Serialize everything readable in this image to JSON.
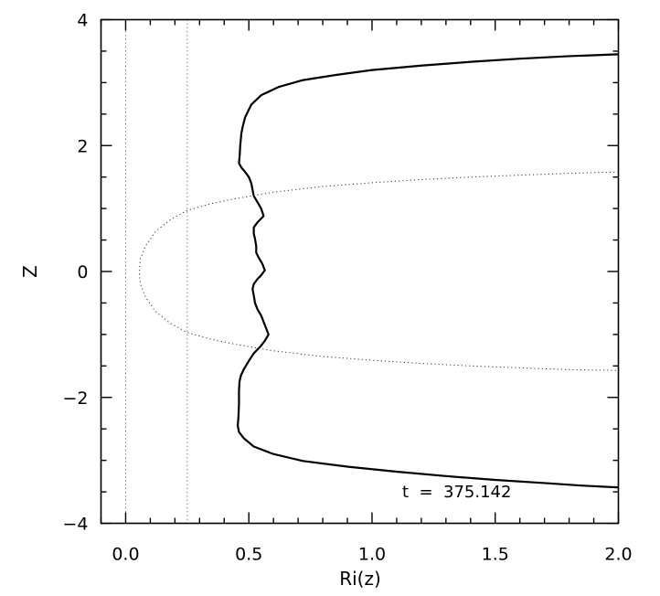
{
  "chart_data": {
    "type": "line",
    "xlabel": "Ri(z)",
    "ylabel": "Z",
    "xlim": [
      -0.1,
      2.0
    ],
    "ylim": [
      -4,
      4
    ],
    "x_ticks": [
      {
        "value": 0.0,
        "label": "0.0"
      },
      {
        "value": 0.5,
        "label": "0.5"
      },
      {
        "value": 1.0,
        "label": "1.0"
      },
      {
        "value": 1.5,
        "label": "1.5"
      },
      {
        "value": 2.0,
        "label": "2.0"
      }
    ],
    "y_ticks": [
      {
        "value": 4,
        "label": "4"
      },
      {
        "value": 2,
        "label": "2"
      },
      {
        "value": 0,
        "label": "0"
      },
      {
        "value": -2,
        "label": "−2"
      },
      {
        "value": -4,
        "label": "−4"
      }
    ],
    "x_minor_step": 0.1,
    "y_minor_step": 0.5,
    "vlines": [
      {
        "x": 0.0,
        "style": "dotted"
      },
      {
        "x": 0.25,
        "style": "dotted"
      }
    ],
    "annotation": "t  =  375.142",
    "series": [
      {
        "style": "solid",
        "points": [
          [
            2.0,
            3.45
          ],
          [
            1.8,
            3.42
          ],
          [
            1.6,
            3.38
          ],
          [
            1.4,
            3.33
          ],
          [
            1.2,
            3.27
          ],
          [
            1.0,
            3.2
          ],
          [
            0.85,
            3.12
          ],
          [
            0.72,
            3.04
          ],
          [
            0.62,
            2.93
          ],
          [
            0.55,
            2.8
          ],
          [
            0.51,
            2.65
          ],
          [
            0.485,
            2.45
          ],
          [
            0.475,
            2.3
          ],
          [
            0.47,
            2.2
          ],
          [
            0.465,
            2.0
          ],
          [
            0.463,
            1.85
          ],
          [
            0.46,
            1.72
          ],
          [
            0.47,
            1.65
          ],
          [
            0.485,
            1.58
          ],
          [
            0.5,
            1.5
          ],
          [
            0.51,
            1.4
          ],
          [
            0.515,
            1.3
          ],
          [
            0.52,
            1.2
          ],
          [
            0.535,
            1.1
          ],
          [
            0.55,
            1.0
          ],
          [
            0.56,
            0.88
          ],
          [
            0.535,
            0.78
          ],
          [
            0.52,
            0.7
          ],
          [
            0.52,
            0.6
          ],
          [
            0.525,
            0.52
          ],
          [
            0.53,
            0.4
          ],
          [
            0.53,
            0.3
          ],
          [
            0.54,
            0.22
          ],
          [
            0.555,
            0.12
          ],
          [
            0.565,
            0.02
          ],
          [
            0.55,
            -0.06
          ],
          [
            0.535,
            -0.12
          ],
          [
            0.52,
            -0.2
          ],
          [
            0.515,
            -0.28
          ],
          [
            0.52,
            -0.38
          ],
          [
            0.525,
            -0.5
          ],
          [
            0.535,
            -0.6
          ],
          [
            0.55,
            -0.7
          ],
          [
            0.56,
            -0.8
          ],
          [
            0.57,
            -0.9
          ],
          [
            0.58,
            -1.0
          ],
          [
            0.565,
            -1.1
          ],
          [
            0.545,
            -1.2
          ],
          [
            0.52,
            -1.3
          ],
          [
            0.5,
            -1.42
          ],
          [
            0.48,
            -1.55
          ],
          [
            0.468,
            -1.65
          ],
          [
            0.462,
            -1.75
          ],
          [
            0.46,
            -1.9
          ],
          [
            0.46,
            -2.1
          ],
          [
            0.458,
            -2.3
          ],
          [
            0.455,
            -2.45
          ],
          [
            0.46,
            -2.55
          ],
          [
            0.48,
            -2.65
          ],
          [
            0.52,
            -2.78
          ],
          [
            0.6,
            -2.9
          ],
          [
            0.72,
            -3.01
          ],
          [
            0.9,
            -3.1
          ],
          [
            1.1,
            -3.18
          ],
          [
            1.3,
            -3.25
          ],
          [
            1.5,
            -3.31
          ],
          [
            1.7,
            -3.36
          ],
          [
            1.85,
            -3.4
          ],
          [
            2.0,
            -3.43
          ]
        ]
      },
      {
        "style": "dotted",
        "points": [
          [
            2.0,
            1.58
          ],
          [
            1.8,
            1.56
          ],
          [
            1.6,
            1.53
          ],
          [
            1.4,
            1.5
          ],
          [
            1.2,
            1.46
          ],
          [
            1.0,
            1.41
          ],
          [
            0.8,
            1.35
          ],
          [
            0.6,
            1.26
          ],
          [
            0.45,
            1.16
          ],
          [
            0.35,
            1.08
          ],
          [
            0.25,
            0.97
          ],
          [
            0.18,
            0.82
          ],
          [
            0.12,
            0.63
          ],
          [
            0.08,
            0.4
          ],
          [
            0.06,
            0.2
          ],
          [
            0.055,
            0.0
          ],
          [
            0.06,
            -0.2
          ],
          [
            0.08,
            -0.4
          ],
          [
            0.12,
            -0.63
          ],
          [
            0.18,
            -0.82
          ],
          [
            0.25,
            -0.97
          ],
          [
            0.35,
            -1.08
          ],
          [
            0.45,
            -1.16
          ],
          [
            0.6,
            -1.26
          ],
          [
            0.8,
            -1.35
          ],
          [
            1.0,
            -1.41
          ],
          [
            1.2,
            -1.46
          ],
          [
            1.4,
            -1.5
          ],
          [
            1.6,
            -1.53
          ],
          [
            1.8,
            -1.56
          ],
          [
            2.0,
            -1.57
          ]
        ]
      }
    ]
  }
}
